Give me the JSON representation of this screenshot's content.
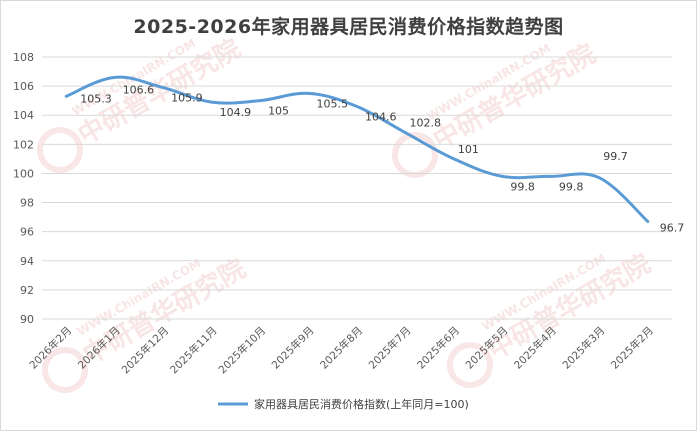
{
  "chart_data": {
    "type": "line",
    "title": "2025-2026年家用器具居民消费价格指数趋势图",
    "categories": [
      "2026年2月",
      "2026年1月",
      "2025年12月",
      "2025年11月",
      "2025年10月",
      "2025年9月",
      "2025年8月",
      "2025年7月",
      "2025年6月",
      "2025年5月",
      "2025年4月",
      "2025年3月",
      "2025年2月"
    ],
    "series": [
      {
        "name": "家用器具居民消费价格指数(上年同月=100)",
        "values": [
          105.3,
          106.6,
          105.9,
          104.9,
          105,
          105.5,
          104.6,
          102.8,
          101,
          99.8,
          99.8,
          99.7,
          96.7
        ],
        "color": "#5b9bd5"
      }
    ],
    "yticks": [
      "108",
      "106",
      "104",
      "102",
      "100",
      "98",
      "96",
      "94",
      "92",
      "90"
    ],
    "ylim": [
      90,
      108
    ],
    "grid": true,
    "legend": "bottom",
    "watermark": {
      "text1": "WWW.ChinaIRN.COM",
      "text2": "中研普华研究院",
      "logo": "CIRN"
    }
  }
}
